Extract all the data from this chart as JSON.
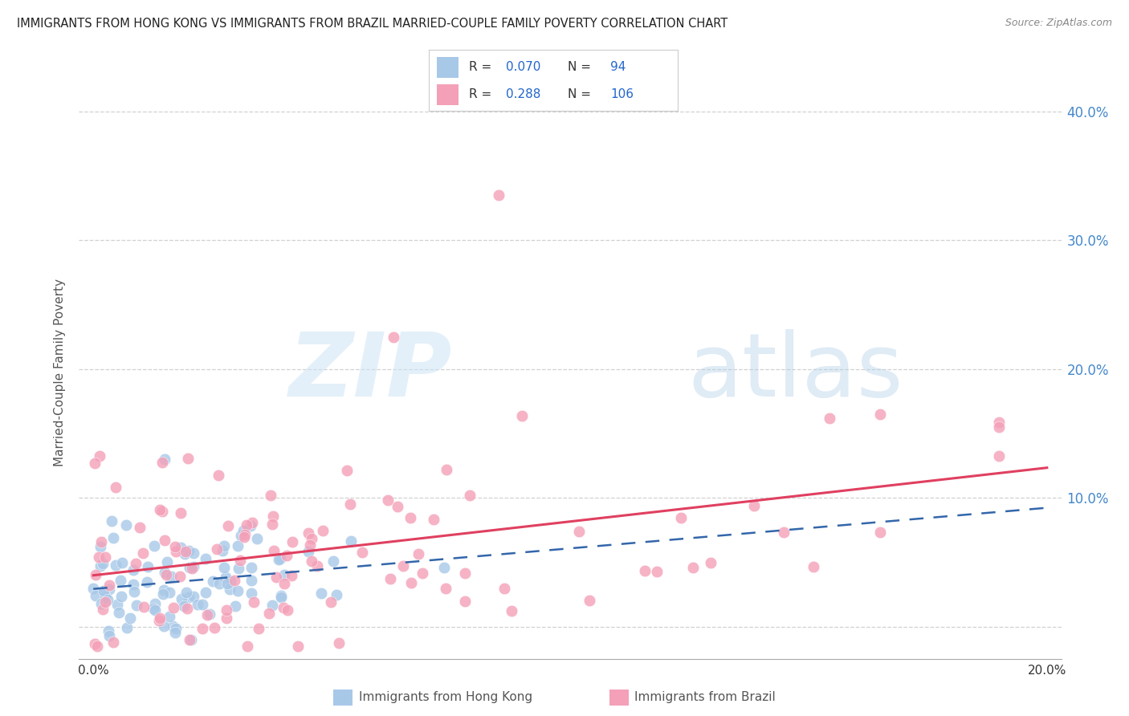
{
  "title": "IMMIGRANTS FROM HONG KONG VS IMMIGRANTS FROM BRAZIL MARRIED-COUPLE FAMILY POVERTY CORRELATION CHART",
  "source": "Source: ZipAtlas.com",
  "ylabel": "Married-Couple Family Poverty",
  "hk_R": 0.07,
  "hk_N": 94,
  "brazil_R": 0.288,
  "brazil_N": 106,
  "hk_color": "#a8c8e8",
  "brazil_color": "#f4a0b8",
  "hk_line_color": "#3366aa",
  "brazil_line_color": "#e04060",
  "legend_label_hk": "Immigrants from Hong Kong",
  "legend_label_brazil": "Immigrants from Brazil",
  "background_color": "#ffffff",
  "grid_color": "#cccccc",
  "title_color": "#222222",
  "axis_label_color": "#555555",
  "tick_color_right": "#4488cc",
  "tick_color_bottom": "#333333",
  "watermark_zip_color": "#cce0f0",
  "watermark_atlas_color": "#b8d4e8"
}
